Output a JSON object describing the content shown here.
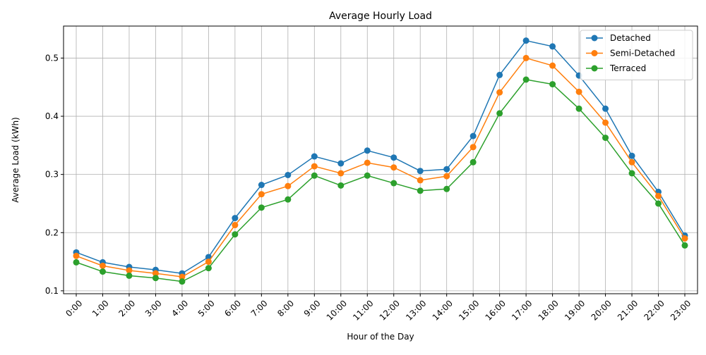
{
  "chart_data": {
    "type": "line",
    "title": "Average Hourly Load",
    "xlabel": "Hour of the Day",
    "ylabel": "Average Load (kWh)",
    "categories": [
      "0:00",
      "1:00",
      "2:00",
      "3:00",
      "4:00",
      "5:00",
      "6:00",
      "7:00",
      "8:00",
      "9:00",
      "10:00",
      "11:00",
      "12:00",
      "13:00",
      "14:00",
      "15:00",
      "16:00",
      "17:00",
      "18:00",
      "19:00",
      "20:00",
      "21:00",
      "22:00",
      "23:00"
    ],
    "ylim": [
      0.095,
      0.555
    ],
    "yticks": [
      0.1,
      0.2,
      0.3,
      0.4,
      0.5
    ],
    "ytick_labels": [
      "0.1",
      "0.2",
      "0.3",
      "0.4",
      "0.5"
    ],
    "grid": true,
    "legend_position": "top-right",
    "series": [
      {
        "name": "Detached",
        "color": "#1f77b4",
        "values": [
          0.166,
          0.149,
          0.141,
          0.136,
          0.13,
          0.158,
          0.225,
          0.282,
          0.299,
          0.331,
          0.319,
          0.341,
          0.329,
          0.306,
          0.309,
          0.366,
          0.471,
          0.53,
          0.52,
          0.47,
          0.413,
          0.332,
          0.27,
          0.195
        ]
      },
      {
        "name": "Semi-Detached",
        "color": "#ff7f0e",
        "values": [
          0.16,
          0.143,
          0.135,
          0.13,
          0.124,
          0.15,
          0.213,
          0.266,
          0.28,
          0.314,
          0.302,
          0.32,
          0.312,
          0.29,
          0.297,
          0.347,
          0.441,
          0.5,
          0.487,
          0.442,
          0.389,
          0.321,
          0.263,
          0.19
        ]
      },
      {
        "name": "Terraced",
        "color": "#2ca02c",
        "values": [
          0.149,
          0.133,
          0.126,
          0.122,
          0.116,
          0.139,
          0.197,
          0.243,
          0.257,
          0.298,
          0.281,
          0.298,
          0.285,
          0.272,
          0.275,
          0.321,
          0.405,
          0.463,
          0.455,
          0.413,
          0.363,
          0.302,
          0.25,
          0.178
        ]
      }
    ]
  }
}
